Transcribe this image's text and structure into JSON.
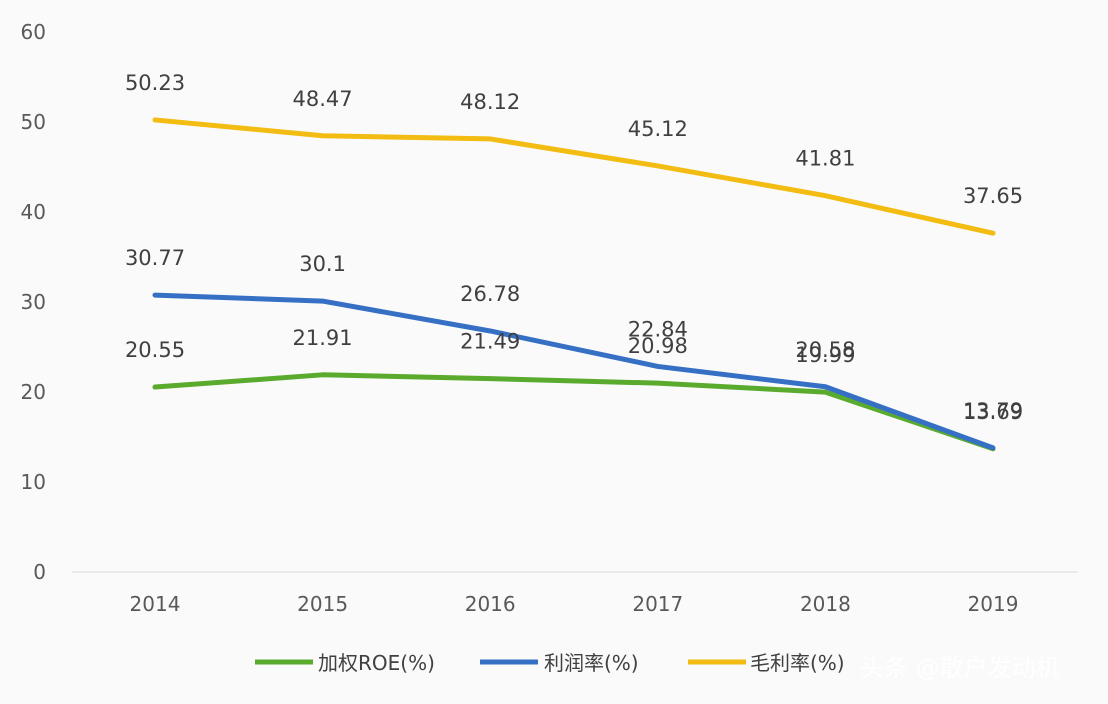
{
  "chart_data": {
    "type": "line",
    "categories": [
      "2014",
      "2015",
      "2016",
      "2017",
      "2018",
      "2019"
    ],
    "ylim": [
      0,
      60
    ],
    "yticks": [
      "0",
      "10",
      "20",
      "30",
      "40",
      "50",
      "60"
    ],
    "grid": false,
    "legend_position": "bottom",
    "series": [
      {
        "name": "加权ROE(%)",
        "color": "#5aaa2e",
        "values": [
          20.55,
          21.91,
          21.49,
          20.98,
          19.99,
          13.69
        ],
        "labels": [
          "20.55",
          "21.91",
          "21.49",
          "20.98",
          "19.99",
          "13.69"
        ]
      },
      {
        "name": "利润率(%)",
        "color": "#3570c4",
        "values": [
          30.77,
          30.1,
          26.78,
          22.84,
          20.58,
          13.79
        ],
        "labels": [
          "30.77",
          "30.1",
          "26.78",
          "22.84",
          "20.58",
          "13.79"
        ]
      },
      {
        "name": "毛利率(%)",
        "color": "#f2bc12",
        "values": [
          50.23,
          48.47,
          48.12,
          45.12,
          41.81,
          37.65
        ],
        "labels": [
          "50.23",
          "48.47",
          "48.12",
          "45.12",
          "41.81",
          "37.65"
        ]
      }
    ]
  },
  "watermark": {
    "text": "头条 @散户发动机",
    "color": "#ffffff"
  }
}
